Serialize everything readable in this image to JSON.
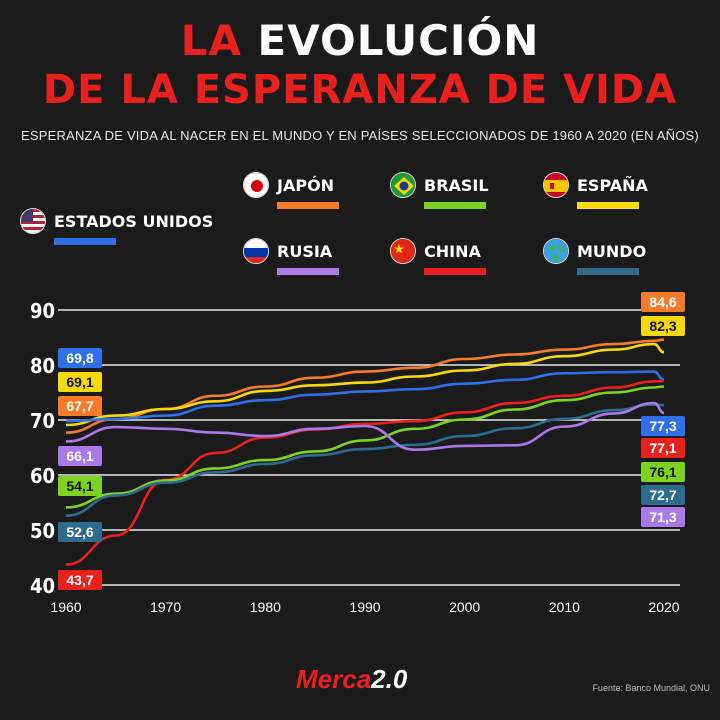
{
  "header": {
    "title_part1": "LA",
    "title_part2": "EVOLUCIÓN",
    "title_line2": "DE LA ESPERANZA DE VIDA",
    "subtitle": "ESPERANZA DE VIDA AL NACER EN EL MUNDO Y EN PAÍSES SELECCIONADOS DE 1960 A 2020 (EN AÑOS)"
  },
  "legend": [
    {
      "label": "JAPÓN",
      "color": "#f47b2a",
      "icon": "japan-flag-icon"
    },
    {
      "label": "BRASIL",
      "color": "#7ed321",
      "icon": "brazil-flag-icon"
    },
    {
      "label": "ESPAÑA",
      "color": "#f5d90a",
      "icon": "spain-flag-icon"
    },
    {
      "label": "ESTADOS UNIDOS",
      "color": "#2f6fe8",
      "icon": "usa-flag-icon"
    },
    {
      "label": "RUSIA",
      "color": "#a979e8",
      "icon": "russia-flag-icon"
    },
    {
      "label": "CHINA",
      "color": "#e8201e",
      "icon": "china-flag-icon"
    },
    {
      "label": "MUNDO",
      "color": "#2e6c8e",
      "icon": "globe-icon"
    }
  ],
  "chart_data": {
    "type": "line",
    "x": [
      1960,
      1965,
      1970,
      1975,
      1980,
      1985,
      1990,
      1995,
      2000,
      2005,
      2010,
      2015,
      2019,
      2020
    ],
    "xticks": [
      1960,
      1970,
      1980,
      1990,
      2000,
      2010,
      2020
    ],
    "yticks": [
      40,
      50,
      60,
      70,
      80,
      90
    ],
    "ylim": [
      40,
      90
    ],
    "xlim": [
      1960,
      2020
    ],
    "series": [
      {
        "name": "JAPÓN",
        "color": "#f47b2a",
        "start_label": "67,7",
        "end_label": "84,6",
        "values": [
          67.7,
          70.2,
          72.0,
          74.4,
          76.1,
          77.7,
          78.8,
          79.5,
          81.1,
          81.9,
          82.8,
          83.8,
          84.4,
          84.6
        ]
      },
      {
        "name": "ESPAÑA",
        "color": "#f5d90a",
        "start_label": "69,1",
        "end_label": "82,3",
        "values": [
          69.1,
          70.8,
          72.0,
          73.4,
          75.3,
          76.3,
          76.8,
          77.9,
          79.0,
          80.2,
          81.6,
          82.8,
          83.8,
          82.3
        ]
      },
      {
        "name": "ESTADOS UNIDOS",
        "color": "#2f6fe8",
        "start_label": "69,8",
        "end_label": "77,3",
        "values": [
          69.8,
          70.2,
          70.8,
          72.6,
          73.6,
          74.6,
          75.2,
          75.6,
          76.6,
          77.3,
          78.5,
          78.7,
          78.8,
          77.3
        ]
      },
      {
        "name": "CHINA",
        "color": "#e8201e",
        "start_label": "43,7",
        "end_label": "77,1",
        "values": [
          43.7,
          49.0,
          59.1,
          64.0,
          66.8,
          68.3,
          69.3,
          69.8,
          71.4,
          73.1,
          74.4,
          75.9,
          77.0,
          77.1
        ]
      },
      {
        "name": "BRASIL",
        "color": "#7ed321",
        "start_label": "54,1",
        "end_label": "76,1",
        "values": [
          54.1,
          56.6,
          59.0,
          61.2,
          62.7,
          64.3,
          66.3,
          68.4,
          70.1,
          71.9,
          73.6,
          75.0,
          75.9,
          76.1
        ]
      },
      {
        "name": "MUNDO",
        "color": "#2e6c8e",
        "start_label": "52,6",
        "end_label": "72,7",
        "values": [
          52.6,
          56.3,
          58.6,
          60.5,
          62.0,
          63.6,
          64.7,
          65.5,
          67.1,
          68.5,
          70.2,
          71.8,
          72.8,
          72.7
        ]
      },
      {
        "name": "RUSIA",
        "color": "#a979e8",
        "start_label": "66,1",
        "end_label": "71,3",
        "values": [
          66.1,
          68.7,
          68.4,
          67.7,
          67.1,
          68.4,
          68.9,
          64.6,
          65.3,
          65.4,
          68.8,
          71.2,
          73.1,
          71.3
        ]
      }
    ]
  },
  "footer": {
    "logo_part1": "Merca",
    "logo_part2": "2.0",
    "source": "Fuente: Banco Mundial, ONU"
  }
}
